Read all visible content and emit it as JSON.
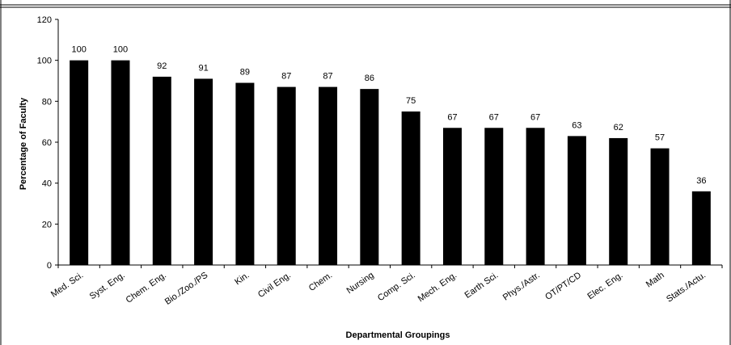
{
  "chart_data": {
    "type": "bar",
    "title": "",
    "xlabel": "Departmental Groupings",
    "ylabel": "Percentage of Faculty",
    "ylim": [
      0,
      120
    ],
    "yticks": [
      0,
      20,
      40,
      60,
      80,
      100,
      120
    ],
    "grid": false,
    "categories": [
      "Med. Sci.",
      "Syst. Eng.",
      "Chem. Eng.",
      "Bio./Zoo./PS",
      "Kin.",
      "Civil Eng.",
      "Chem.",
      "Nursing",
      "Comp. Sci.",
      "Mech. Eng.",
      "Earth Sci.",
      "Phys./Astr.",
      "OT/PT/CD",
      "Elec. Eng.",
      "Math",
      "Stats./Actu."
    ],
    "values": [
      100,
      100,
      92,
      91,
      89,
      87,
      87,
      86,
      75,
      67,
      67,
      67,
      63,
      62,
      57,
      36
    ],
    "data_labels": [
      "100",
      "100",
      "92",
      "91",
      "89",
      "87",
      "87",
      "86",
      "75",
      "67",
      "67",
      "67",
      "63",
      "62",
      "57",
      "36"
    ],
    "bar_color": "#000000"
  }
}
